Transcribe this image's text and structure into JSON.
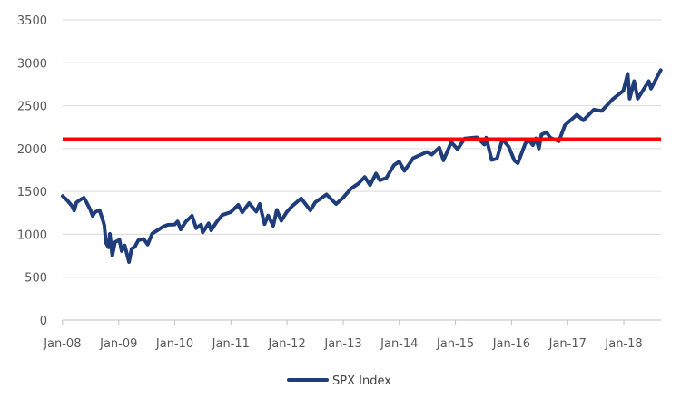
{
  "chart_data": {
    "type": "line",
    "title": "",
    "xlabel": "",
    "ylabel": "",
    "ylim": [
      0,
      3500
    ],
    "xlim": [
      "2008-01-02",
      "2018-08-31"
    ],
    "y_ticks": [
      0,
      500,
      1000,
      1500,
      2000,
      2500,
      3000,
      3500
    ],
    "x_ticks": [
      {
        "date": "2008-01-01",
        "label": "Jan-08"
      },
      {
        "date": "2009-01-01",
        "label": "Jan-09"
      },
      {
        "date": "2010-01-01",
        "label": "Jan-10"
      },
      {
        "date": "2011-01-01",
        "label": "Jan-11"
      },
      {
        "date": "2012-01-01",
        "label": "Jan-12"
      },
      {
        "date": "2013-01-01",
        "label": "Jan-13"
      },
      {
        "date": "2014-01-01",
        "label": "Jan-14"
      },
      {
        "date": "2015-01-01",
        "label": "Jan-15"
      },
      {
        "date": "2016-01-01",
        "label": "Jan-16"
      },
      {
        "date": "2017-01-01",
        "label": "Jan-17"
      },
      {
        "date": "2018-01-01",
        "label": "Jan-18"
      }
    ],
    "grid": "horizontal",
    "legend": "bottom",
    "series": [
      {
        "name": "SPX Index",
        "color": "#1f3d7a",
        "points": [
          [
            "2008-01-02",
            1447
          ],
          [
            "2008-02-01",
            1395
          ],
          [
            "2008-03-03",
            1330
          ],
          [
            "2008-03-17",
            1276
          ],
          [
            "2008-04-01",
            1370
          ],
          [
            "2008-05-01",
            1409
          ],
          [
            "2008-05-19",
            1426
          ],
          [
            "2008-06-02",
            1385
          ],
          [
            "2008-07-01",
            1284
          ],
          [
            "2008-07-15",
            1215
          ],
          [
            "2008-08-01",
            1260
          ],
          [
            "2008-08-29",
            1282
          ],
          [
            "2008-09-15",
            1192
          ],
          [
            "2008-09-29",
            1106
          ],
          [
            "2008-10-10",
            899
          ],
          [
            "2008-10-27",
            848
          ],
          [
            "2008-11-04",
            1005
          ],
          [
            "2008-11-20",
            752
          ],
          [
            "2008-12-08",
            909
          ],
          [
            "2009-01-06",
            935
          ],
          [
            "2009-01-20",
            805
          ],
          [
            "2009-02-09",
            869
          ],
          [
            "2009-03-09",
            677
          ],
          [
            "2009-03-26",
            832
          ],
          [
            "2009-04-15",
            852
          ],
          [
            "2009-05-08",
            929
          ],
          [
            "2009-06-12",
            946
          ],
          [
            "2009-07-08",
            881
          ],
          [
            "2009-08-07",
            1010
          ],
          [
            "2009-09-15",
            1052
          ],
          [
            "2009-10-16",
            1088
          ],
          [
            "2009-11-16",
            1110
          ],
          [
            "2009-12-31",
            1115
          ],
          [
            "2010-01-19",
            1150
          ],
          [
            "2010-02-08",
            1056
          ],
          [
            "2010-03-15",
            1150
          ],
          [
            "2010-04-23",
            1217
          ],
          [
            "2010-05-20",
            1071
          ],
          [
            "2010-06-21",
            1113
          ],
          [
            "2010-07-02",
            1022
          ],
          [
            "2010-08-09",
            1127
          ],
          [
            "2010-08-26",
            1047
          ],
          [
            "2010-10-01",
            1146
          ],
          [
            "2010-11-05",
            1225
          ],
          [
            "2010-12-31",
            1258
          ],
          [
            "2011-02-18",
            1343
          ],
          [
            "2011-03-16",
            1256
          ],
          [
            "2011-04-29",
            1364
          ],
          [
            "2011-06-15",
            1265
          ],
          [
            "2011-07-07",
            1354
          ],
          [
            "2011-08-08",
            1119
          ],
          [
            "2011-08-31",
            1219
          ],
          [
            "2011-10-03",
            1099
          ],
          [
            "2011-10-27",
            1285
          ],
          [
            "2011-11-25",
            1158
          ],
          [
            "2011-12-30",
            1258
          ],
          [
            "2012-02-01",
            1324
          ],
          [
            "2012-04-02",
            1419
          ],
          [
            "2012-06-01",
            1278
          ],
          [
            "2012-07-03",
            1374
          ],
          [
            "2012-09-14",
            1465
          ],
          [
            "2012-11-15",
            1353
          ],
          [
            "2012-12-31",
            1426
          ],
          [
            "2013-02-19",
            1530
          ],
          [
            "2013-04-11",
            1593
          ],
          [
            "2013-05-21",
            1669
          ],
          [
            "2013-06-24",
            1573
          ],
          [
            "2013-08-02",
            1709
          ],
          [
            "2013-08-27",
            1630
          ],
          [
            "2013-10-08",
            1656
          ],
          [
            "2013-11-27",
            1807
          ],
          [
            "2013-12-31",
            1848
          ],
          [
            "2014-02-03",
            1741
          ],
          [
            "2014-04-02",
            1890
          ],
          [
            "2014-06-30",
            1960
          ],
          [
            "2014-07-31",
            1930
          ],
          [
            "2014-09-18",
            2011
          ],
          [
            "2014-10-15",
            1862
          ],
          [
            "2014-12-05",
            2075
          ],
          [
            "2015-01-15",
            1992
          ],
          [
            "2015-03-02",
            2117
          ],
          [
            "2015-05-21",
            2131
          ],
          [
            "2015-07-08",
            2046
          ],
          [
            "2015-07-20",
            2128
          ],
          [
            "2015-08-25",
            1867
          ],
          [
            "2015-09-29",
            1884
          ],
          [
            "2015-11-03",
            2109
          ],
          [
            "2015-12-14",
            2021
          ],
          [
            "2016-01-20",
            1859
          ],
          [
            "2016-02-11",
            1829
          ],
          [
            "2016-03-31",
            2060
          ],
          [
            "2016-04-20",
            2102
          ],
          [
            "2016-05-19",
            2040
          ],
          [
            "2016-06-08",
            2119
          ],
          [
            "2016-06-27",
            2001
          ],
          [
            "2016-07-14",
            2163
          ],
          [
            "2016-08-15",
            2190
          ],
          [
            "2016-09-09",
            2128
          ],
          [
            "2016-11-04",
            2085
          ],
          [
            "2016-12-13",
            2271
          ],
          [
            "2017-03-01",
            2395
          ],
          [
            "2017-04-13",
            2329
          ],
          [
            "2017-06-19",
            2453
          ],
          [
            "2017-08-10",
            2438
          ],
          [
            "2017-10-20",
            2575
          ],
          [
            "2017-12-29",
            2674
          ],
          [
            "2018-01-26",
            2873
          ],
          [
            "2018-02-08",
            2581
          ],
          [
            "2018-03-09",
            2786
          ],
          [
            "2018-04-02",
            2582
          ],
          [
            "2018-06-12",
            2786
          ],
          [
            "2018-06-27",
            2700
          ],
          [
            "2018-08-29",
            2914
          ]
        ]
      }
    ],
    "reference_lines": [
      {
        "y": 2110,
        "color": "#ff0000"
      }
    ]
  }
}
